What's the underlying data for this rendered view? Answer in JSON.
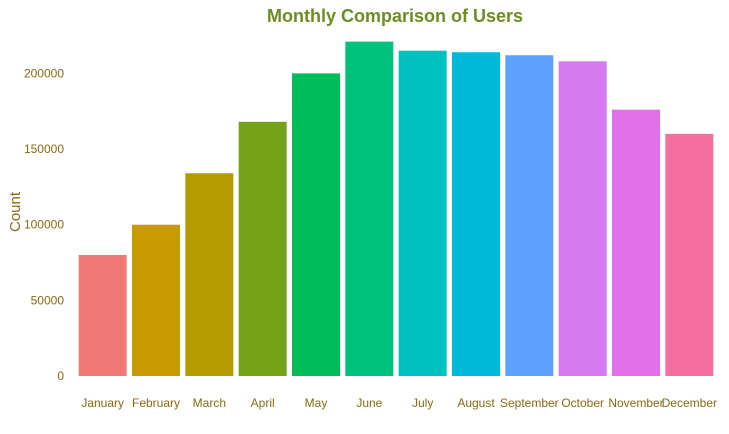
{
  "chart_data": {
    "type": "bar",
    "title": "Monthly Comparison of Users",
    "xlabel": "",
    "ylabel": "Count",
    "ylim": [
      0,
      230000
    ],
    "yticks": [
      0,
      50000,
      100000,
      150000,
      200000
    ],
    "ytick_labels": [
      "0",
      "50000",
      "100000",
      "150000",
      "200000"
    ],
    "grid": false,
    "legend": "none",
    "categories": [
      "January",
      "February",
      "March",
      "April",
      "May",
      "June",
      "July",
      "August",
      "September",
      "October",
      "November",
      "December"
    ],
    "values": [
      80000,
      100000,
      134000,
      168000,
      200000,
      221000,
      215000,
      214000,
      212000,
      208000,
      176000,
      160000
    ],
    "colors": [
      "#F07878",
      "#C99A00",
      "#B59A00",
      "#76A21A",
      "#00BC5A",
      "#00C27C",
      "#00C0C0",
      "#00BADA",
      "#5EA0FF",
      "#D57AF0",
      "#E070E8",
      "#F56EA0"
    ],
    "title_color": "#6B8E23",
    "text_color": "#8B6914"
  }
}
